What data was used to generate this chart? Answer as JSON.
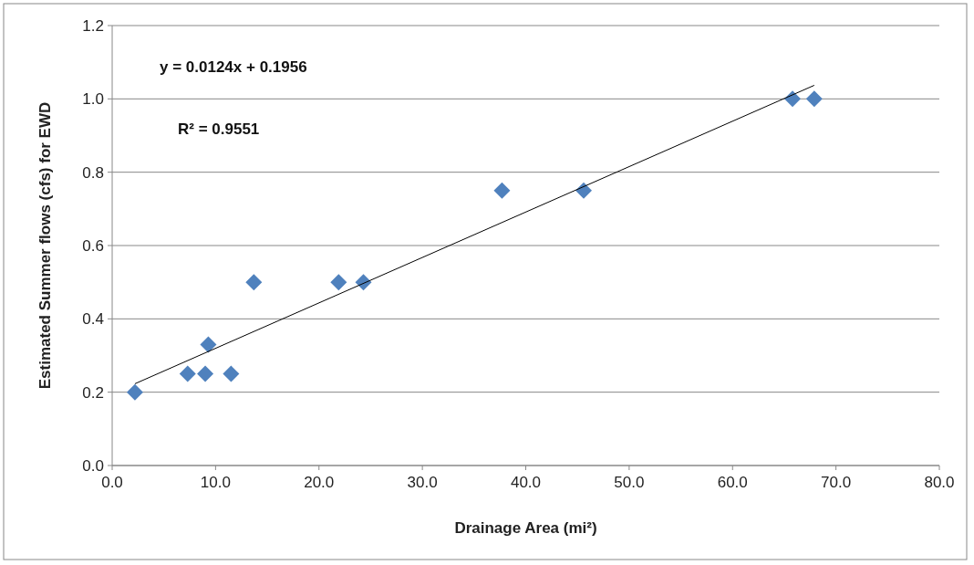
{
  "chart_data": {
    "type": "scatter",
    "xlabel": "Drainage Area (mi²)",
    "ylabel": "Estimated Summer flows  (cfs) for EWD",
    "annotations": [
      "y = 0.0124x + 0.1956",
      "R² = 0.9551"
    ],
    "series": [
      {
        "color": "#4f81bd",
        "marker": "diamond",
        "x": [
          2.2,
          7.3,
          9.0,
          9.3,
          11.5,
          13.7,
          21.9,
          24.3,
          37.7,
          45.6,
          65.8,
          67.9
        ],
        "values": [
          0.2,
          0.25,
          0.25,
          0.33,
          0.25,
          0.5,
          0.5,
          0.5,
          0.75,
          0.75,
          1.0,
          1.0
        ]
      },
      {
        "type": "line",
        "color": "#000000",
        "marker": "none",
        "x": [
          2.2,
          67.9
        ],
        "values": [
          0.223,
          1.037
        ]
      }
    ],
    "xlim": [
      0,
      80
    ],
    "ylim": [
      0,
      1.2
    ],
    "xticks": [
      {
        "value": 0,
        "label": "0.0"
      },
      {
        "value": 10,
        "label": "10.0"
      },
      {
        "value": 20,
        "label": "20.0"
      },
      {
        "value": 30,
        "label": "30.0"
      },
      {
        "value": 40,
        "label": "40.0"
      },
      {
        "value": 50,
        "label": "50.0"
      },
      {
        "value": 60,
        "label": "60.0"
      },
      {
        "value": 70,
        "label": "70.0"
      },
      {
        "value": 80,
        "label": "80.0"
      }
    ],
    "yticks": [
      {
        "value": 0,
        "label": "0.0"
      },
      {
        "value": 0.2,
        "label": "0.2"
      },
      {
        "value": 0.4,
        "label": "0.4"
      },
      {
        "value": 0.6,
        "label": "0.6"
      },
      {
        "value": 0.8,
        "label": "0.8"
      },
      {
        "value": 1.0,
        "label": "1.0"
      },
      {
        "value": 1.2,
        "label": "1.2"
      }
    ],
    "grid": "y"
  }
}
